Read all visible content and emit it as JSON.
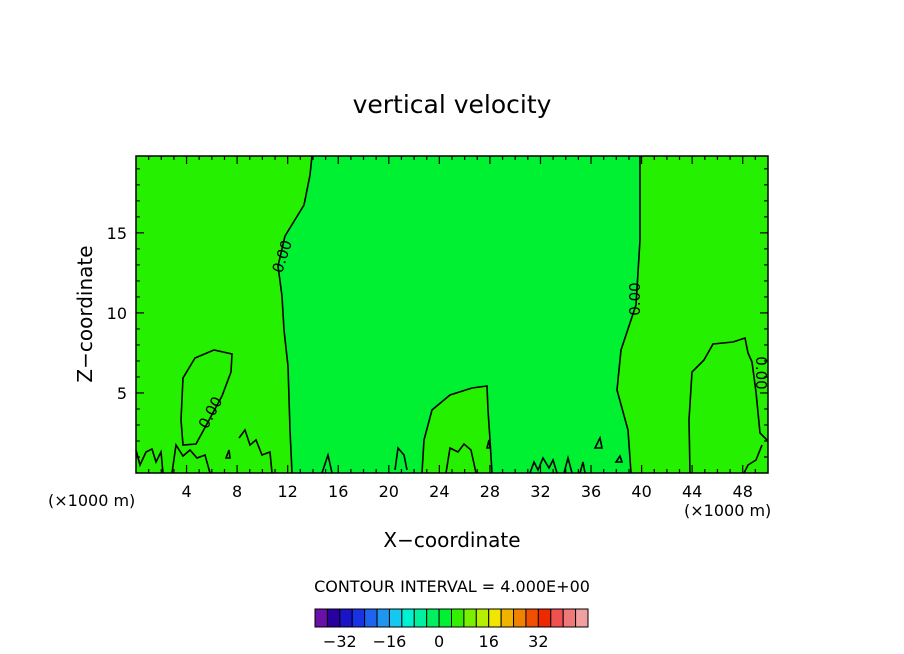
{
  "chart_data": {
    "type": "heatmap",
    "title": "vertical velocity",
    "xlabel": "X−coordinate",
    "ylabel": "Z−coordinate",
    "x_unit": "(×1000 m)",
    "xlim": [
      0,
      50
    ],
    "ylim": [
      0,
      19.8
    ],
    "x_ticks": [
      4,
      8,
      12,
      16,
      20,
      24,
      28,
      32,
      36,
      40,
      44,
      48
    ],
    "y_ticks": [
      5,
      10,
      15
    ],
    "contour_label": "0.00",
    "contour_interval_text": "CONTOUR INTERVAL = 4.000E+00",
    "colorbar": {
      "colors": [
        "#6a0fa8",
        "#2800a0",
        "#1a14c8",
        "#1a32e6",
        "#1e64f0",
        "#1e96f0",
        "#14c8f0",
        "#00f0d2",
        "#00f0a0",
        "#00f060",
        "#00f032",
        "#32f000",
        "#78f000",
        "#b4f000",
        "#f0e600",
        "#f0b400",
        "#f08200",
        "#f05000",
        "#f02800",
        "#f05050",
        "#f07878",
        "#f0a0a0"
      ],
      "ticks": [
        -32,
        -16,
        0,
        16,
        32
      ],
      "tick_labels": [
        "−32",
        "−16",
        "0",
        "16",
        "32"
      ],
      "min": -40,
      "max": 48
    },
    "regions": [
      {
        "name": "positive-region-left",
        "color": "#24f000",
        "x_range": [
          0,
          14
        ]
      },
      {
        "name": "near-zero-region-center",
        "color": "#00f032",
        "x_range": [
          14,
          40
        ]
      },
      {
        "name": "positive-region-right",
        "color": "#24f000",
        "x_range": [
          40,
          50
        ]
      }
    ]
  }
}
